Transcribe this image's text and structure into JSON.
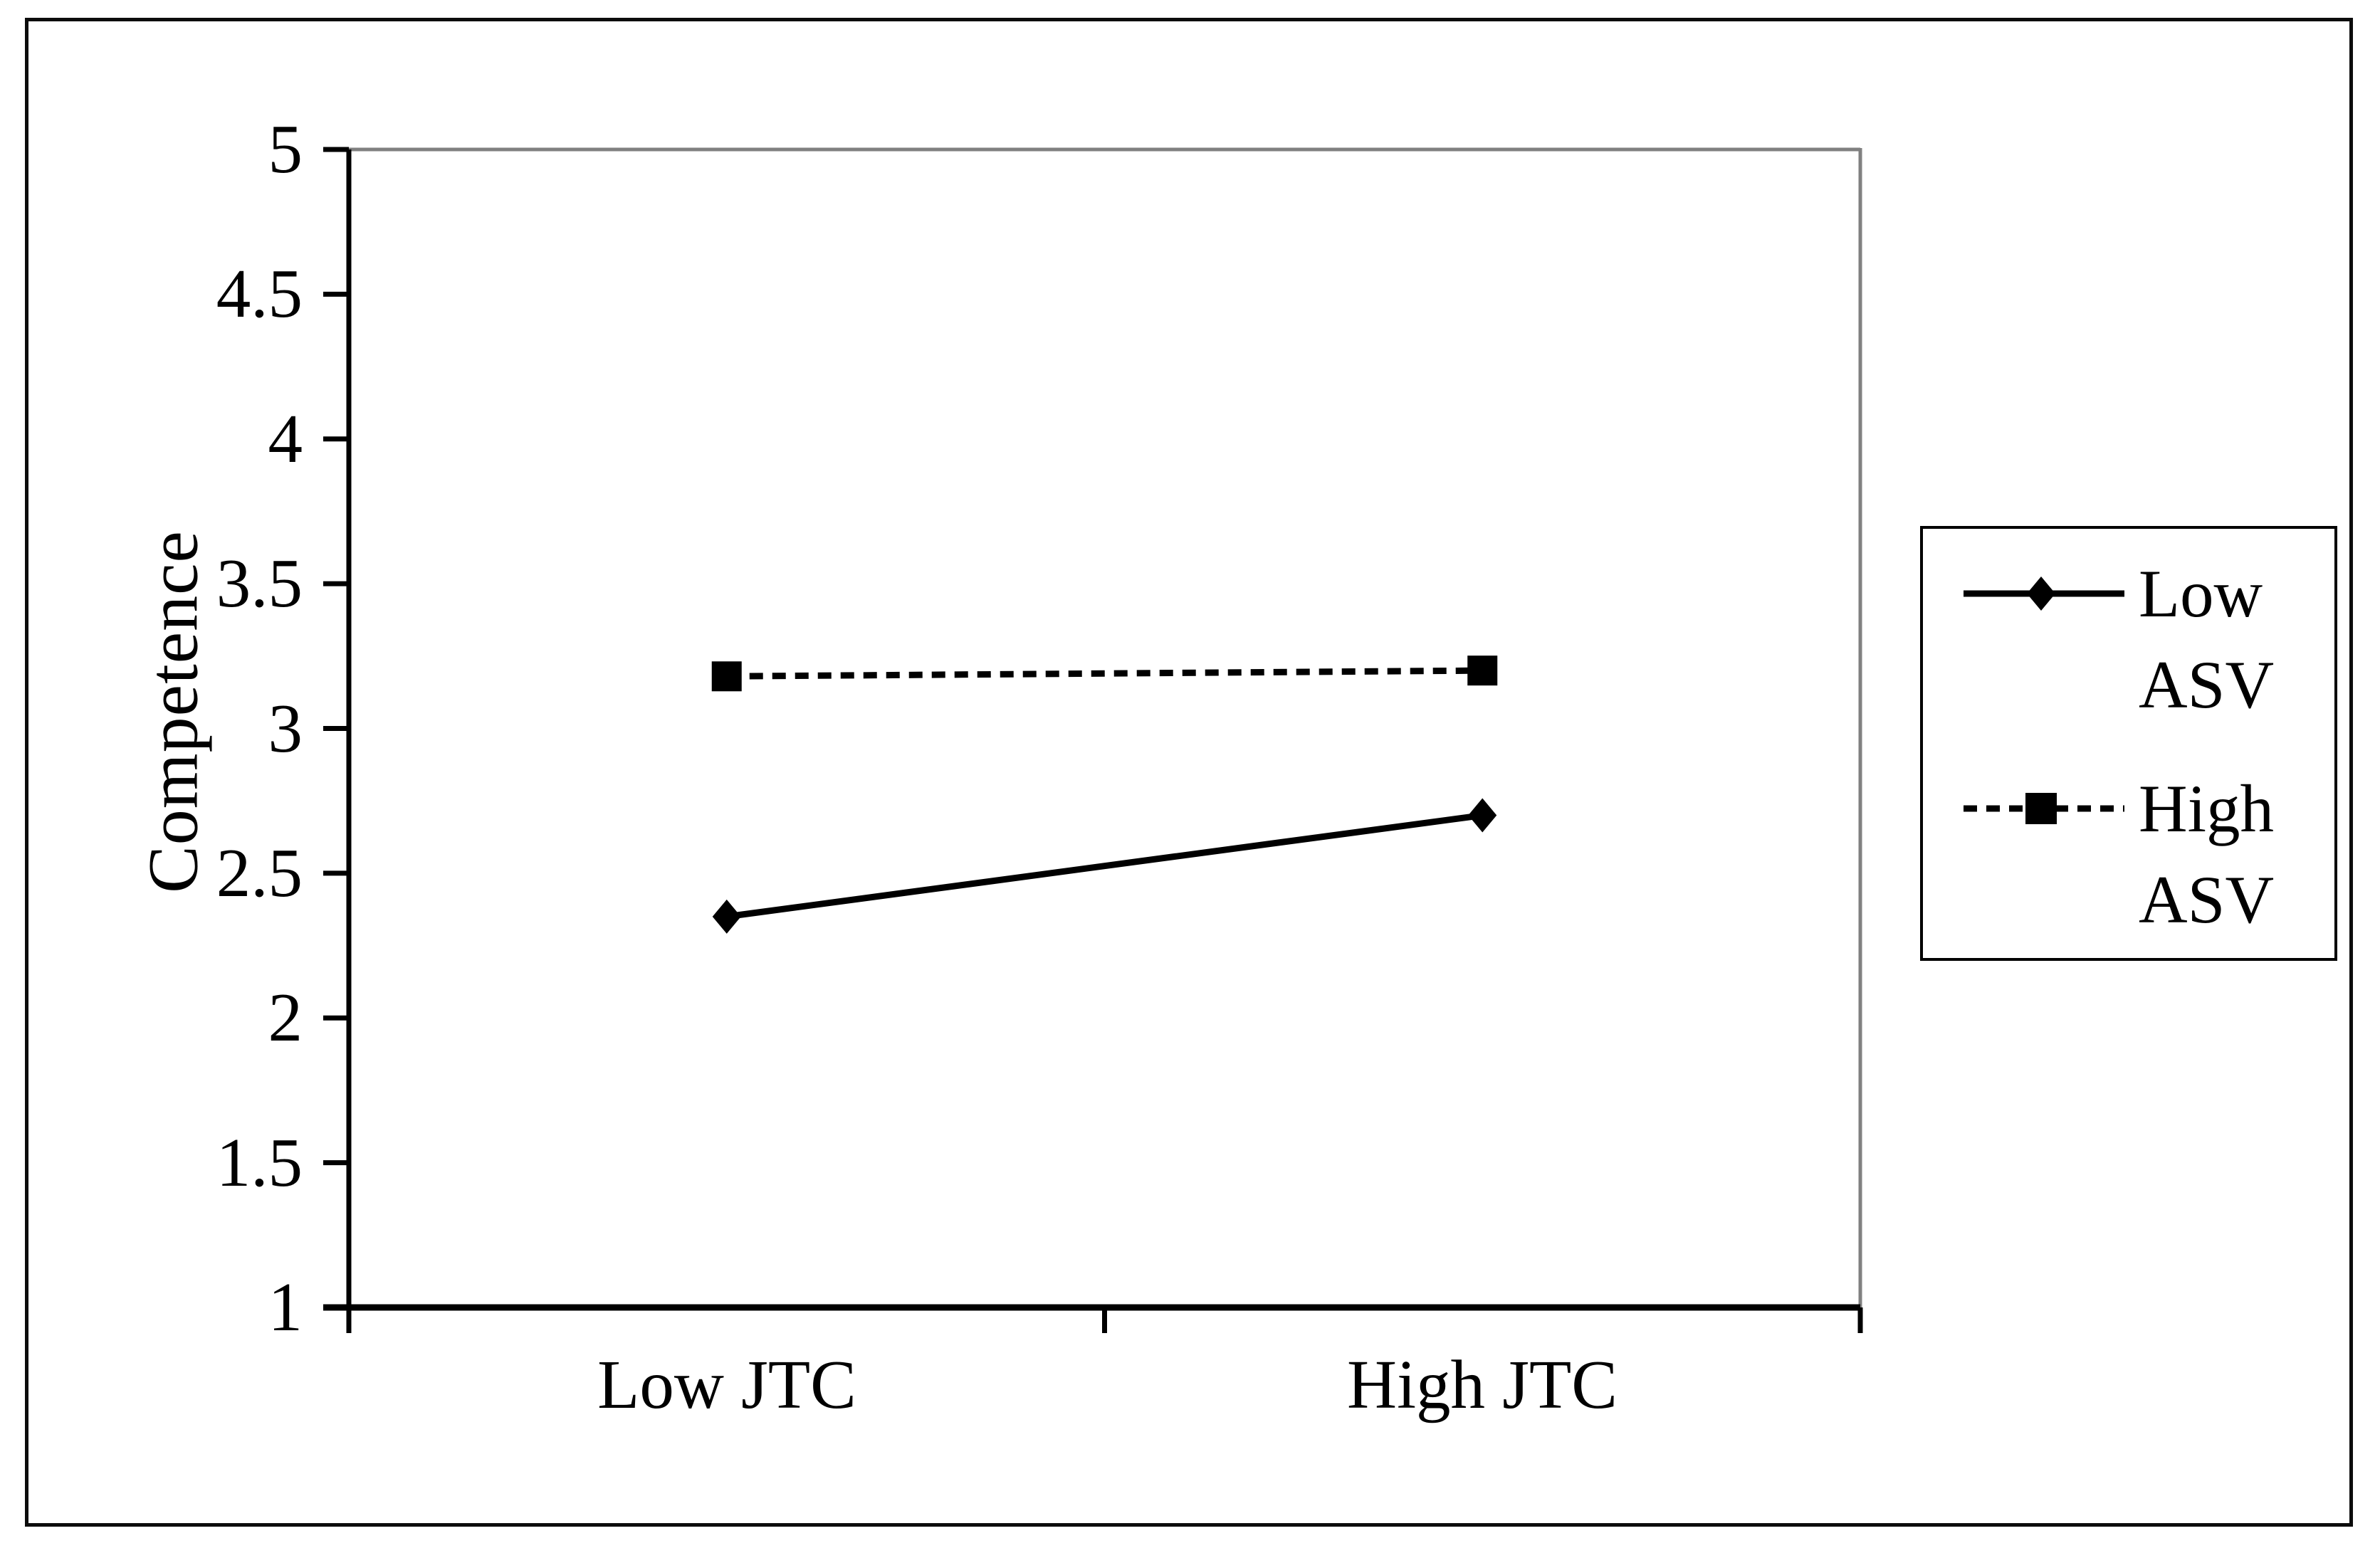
{
  "chart_data": {
    "type": "line",
    "title": "",
    "categories": [
      "Low JTC",
      "High JTC"
    ],
    "series": [
      {
        "name": "Low ASV",
        "values": [
          2.35,
          2.7
        ],
        "line_style": "solid",
        "marker": "diamond",
        "color": "#000000"
      },
      {
        "name": "High ASV",
        "values": [
          3.18,
          3.2
        ],
        "line_style": "dashed",
        "marker": "square",
        "color": "#000000"
      }
    ],
    "xlabel": "",
    "ylabel": "Competence",
    "ylim": [
      1,
      5
    ],
    "yticks": [
      "5",
      "4.5",
      "4",
      "3.5",
      "3",
      "2.5",
      "2",
      "1.5",
      "1"
    ],
    "grid": false,
    "legend_position": "right",
    "frame_color": "#808080",
    "axis_color": "#000000"
  }
}
